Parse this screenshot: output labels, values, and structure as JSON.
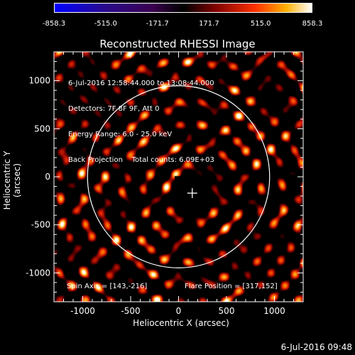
{
  "chart_data": {
    "type": "heatmap",
    "title": "Reconstructed RHESSI Image",
    "xlabel": "Heliocentric X (arcsec)",
    "ylabel": "Heliocentric Y (arcsec)",
    "xlim": [
      -1300,
      1300
    ],
    "ylim": [
      -1300,
      1300
    ],
    "xticks": [
      "-1000",
      "-500",
      "0",
      "500",
      "1000"
    ],
    "yticks": [
      "1000",
      "500",
      "0",
      "-500",
      "-1000"
    ],
    "colorbar": {
      "ticks": [
        "-858.3",
        "-515.0",
        "-171.7",
        "171.7",
        "515.0",
        "858.3"
      ],
      "min": -858.3,
      "max": 858.3
    },
    "info_lines": [
      "6-Jul-2016 12:58:44.000 to 13:08:44.000",
      "Detectors: 7F 8F 9F, Att 0",
      "Energy Range: 6.0 - 25.0 keV",
      "Back Projection    Total counts: 6.09E+03"
    ],
    "spin_axis": "Spin Axis = [143,-216]",
    "flare_position": "Flare Position = [317,152]",
    "solar_disk_radius": 950,
    "center_marker": [
      143,
      -170
    ]
  },
  "footer_timestamp": "6-Jul-2016 09:48",
  "colors": {
    "background": "#000000",
    "axes": "#ffffff"
  }
}
